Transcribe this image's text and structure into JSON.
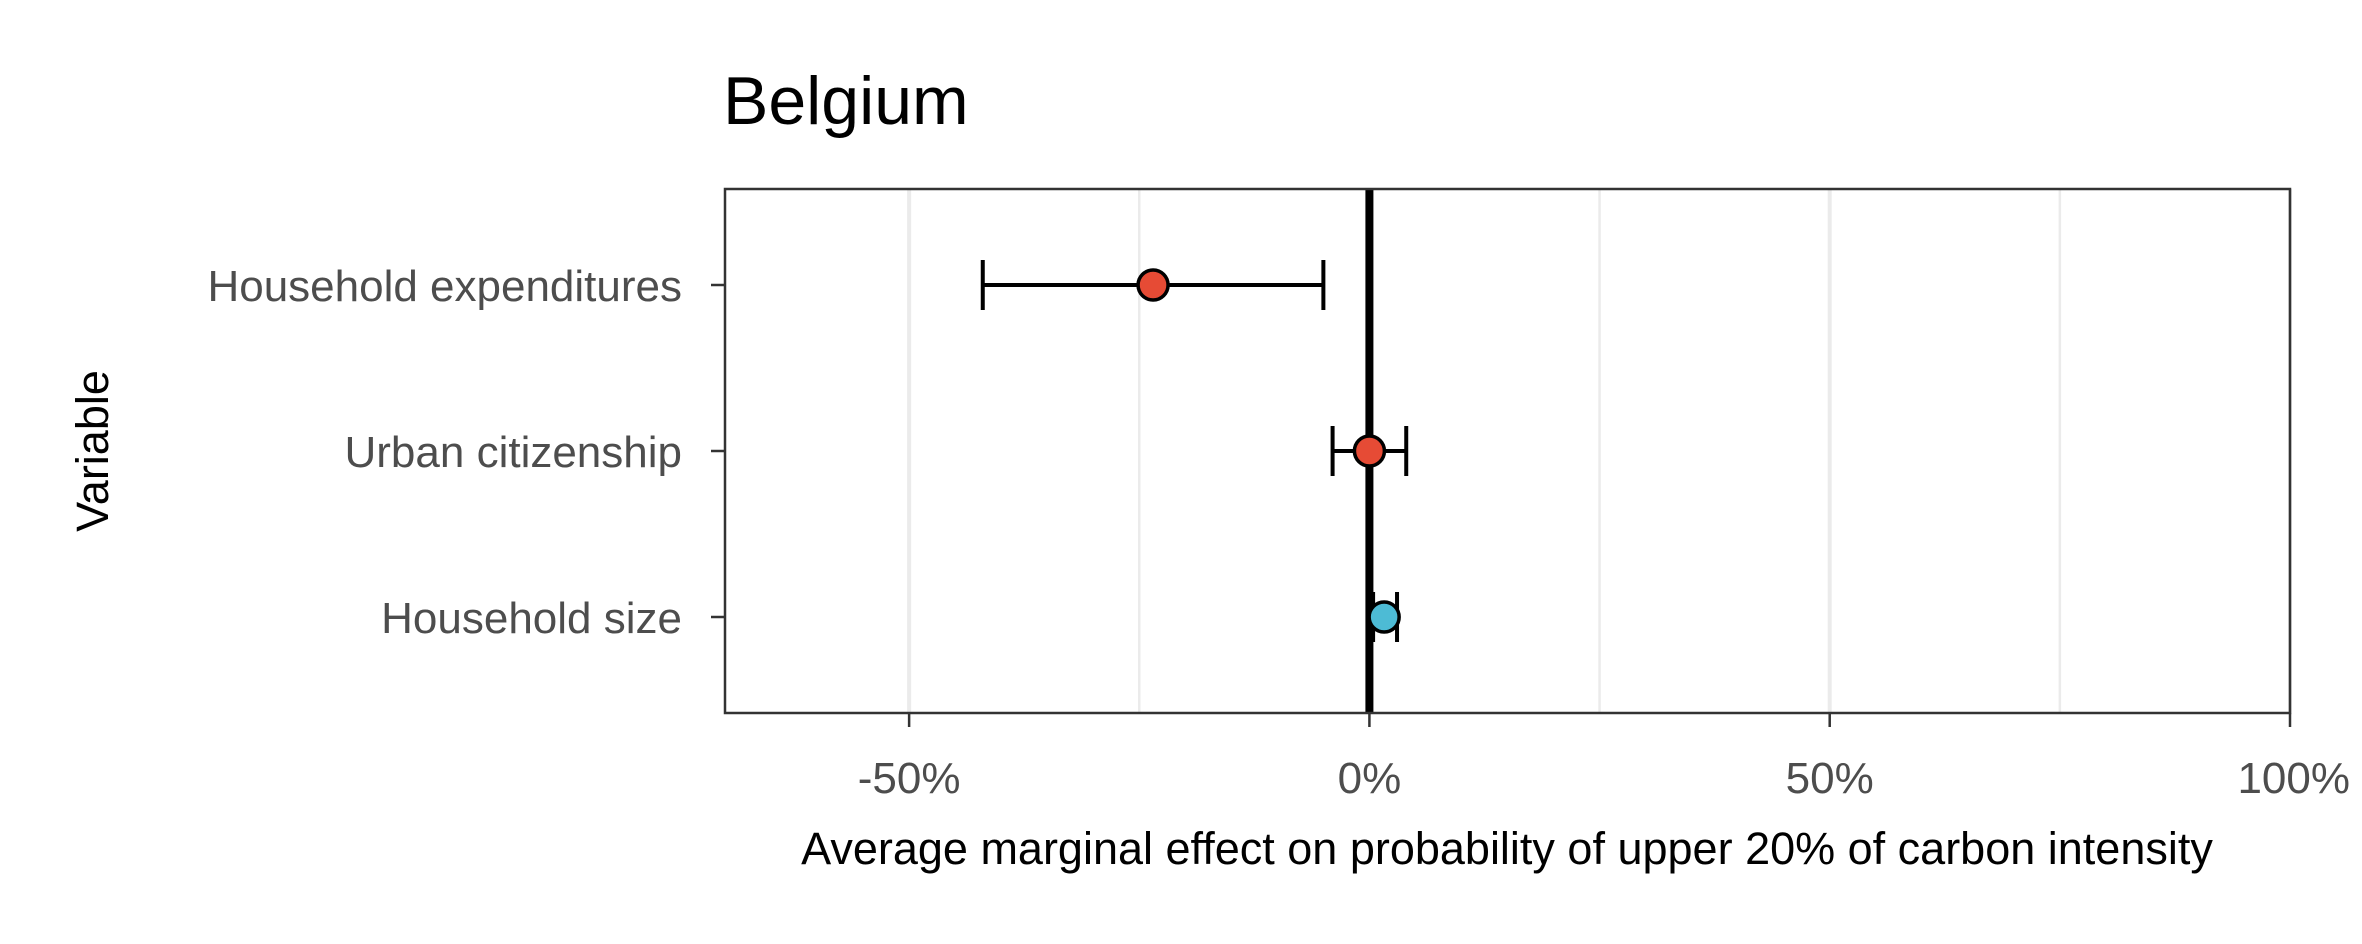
{
  "chart_data": {
    "type": "scatter",
    "title": "Belgium",
    "xlabel": "Average marginal effect on probability of upper 20% of carbon intensity",
    "ylabel": "Variable",
    "xlim": [
      -0.7,
      1.0
    ],
    "x_ticks": [
      {
        "value": -0.5,
        "label": "-50%"
      },
      {
        "value": 0.0,
        "label": "0%"
      },
      {
        "value": 0.5,
        "label": "50%"
      },
      {
        "value": 1.0,
        "label": "100%"
      }
    ],
    "x_minor_gridlines": [
      -0.25,
      0.25,
      0.75
    ],
    "reference_line_x": 0,
    "grid": true,
    "legend": "none",
    "categories": [
      "Household expenditures",
      "Urban citizenship",
      "Household size"
    ],
    "points": [
      {
        "variable": "Household expenditures",
        "estimate": -0.235,
        "ci_low": -0.42,
        "ci_high": -0.05,
        "color": "#e64b35"
      },
      {
        "variable": "Urban citizenship",
        "estimate": 0.0,
        "ci_low": -0.04,
        "ci_high": 0.04,
        "color": "#e64b35"
      },
      {
        "variable": "Household size",
        "estimate": 0.016,
        "ci_low": 0.004,
        "ci_high": 0.03,
        "color": "#4dbbd5"
      }
    ],
    "colors": {
      "negative": "#e64b35",
      "positive": "#4dbbd5",
      "grid": "#ebebeb",
      "frame": "#333333"
    }
  }
}
